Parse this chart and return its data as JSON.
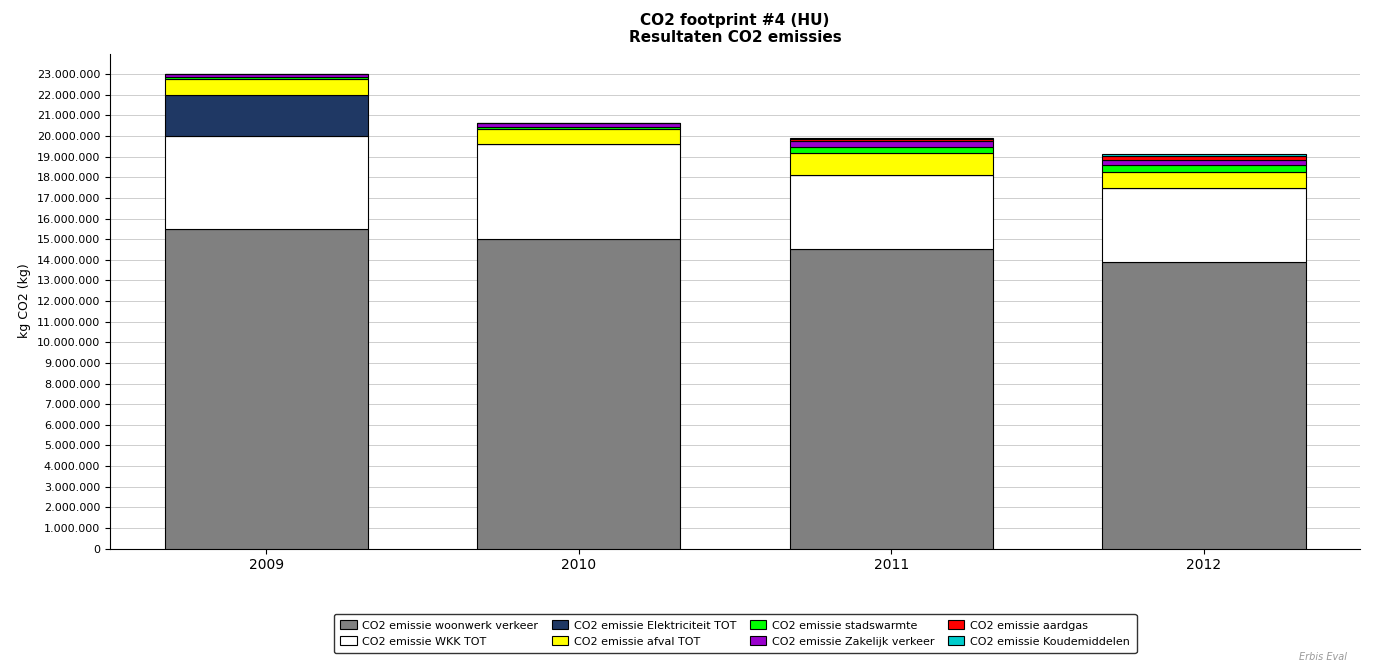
{
  "title_line1": "CO2 footprint #4 (HU)",
  "title_line2": "Resultaten CO2 emissies",
  "years": [
    "2009",
    "2010",
    "2011",
    "2012"
  ],
  "ylabel": "kg CO2 (kg)",
  "ylim": [
    0,
    24000000
  ],
  "yticks": [
    0,
    1000000,
    2000000,
    3000000,
    4000000,
    5000000,
    6000000,
    7000000,
    8000000,
    9000000,
    10000000,
    11000000,
    12000000,
    13000000,
    14000000,
    15000000,
    16000000,
    17000000,
    18000000,
    19000000,
    20000000,
    21000000,
    22000000,
    23000000
  ],
  "series": [
    {
      "label": "CO2 emissie woonwerk verkeer",
      "color": "#808080",
      "values": [
        15500000,
        15000000,
        14500000,
        13900000
      ]
    },
    {
      "label": "CO2 emissie WKK TOT",
      "color": "#FFFFFF",
      "values": [
        4500000,
        4600000,
        3600000,
        3600000
      ]
    },
    {
      "label": "CO2 emissie Elektriciteit TOT",
      "color": "#1F3864",
      "values": [
        2000000,
        0,
        0,
        0
      ]
    },
    {
      "label": "CO2 emissie afval TOT",
      "color": "#FFFF00",
      "values": [
        750000,
        750000,
        1100000,
        750000
      ]
    },
    {
      "label": "CO2 emissie stadswarmte",
      "color": "#00FF00",
      "values": [
        100000,
        100000,
        280000,
        330000
      ]
    },
    {
      "label": "CO2 emissie Zakelijk verkeer",
      "color": "#9900CC",
      "values": [
        180000,
        170000,
        280000,
        280000
      ]
    },
    {
      "label": "CO2 emissie aardgas",
      "color": "#FF0000",
      "values": [
        0,
        0,
        80000,
        180000
      ]
    },
    {
      "label": "CO2 emissie Koudemiddelen",
      "color": "#00CCCC",
      "values": [
        0,
        0,
        60000,
        80000
      ]
    }
  ],
  "legend_order": [
    [
      "CO2 emissie woonwerk verkeer",
      "CO2 emissie WKK TOT",
      "CO2 emissie Elektriciteit TOT",
      "CO2 emissie afval TOT"
    ],
    [
      "CO2 emissie stadswarmte",
      "CO2 emissie Zakelijk verkeer",
      "CO2 emissie aardgas",
      "CO2 emissie Koudemiddelen"
    ]
  ],
  "background_color": "#FFFFFF",
  "watermark": "Erbis Eval",
  "bar_width": 0.65,
  "bar_edge_color": "#000000",
  "bar_edge_width": 0.8
}
